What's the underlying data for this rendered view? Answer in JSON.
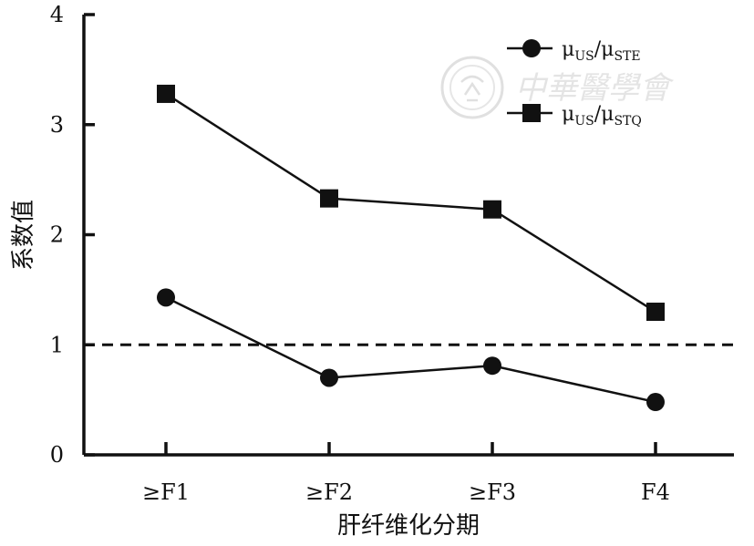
{
  "chart_data": {
    "type": "line",
    "categories": [
      "≥F1",
      "≥F2",
      "≥F3",
      "F4"
    ],
    "ylim": [
      0,
      4
    ],
    "yticks": [
      0,
      1,
      2,
      3,
      4
    ],
    "xlabel": "肝纤维化分期",
    "ylabel": "系数值",
    "reference_line": {
      "y": 1,
      "style": "dashed"
    },
    "legend_position": "top-right",
    "series": [
      {
        "key": "ste",
        "name": "μUS/μSTE",
        "legend": {
          "num_base": "μ",
          "num_sub": "US",
          "den_base": "μ",
          "den_sub": "STE"
        },
        "marker": "circle",
        "values": [
          1.43,
          0.7,
          0.81,
          0.48
        ]
      },
      {
        "key": "stq",
        "name": "μUS/μSTQ",
        "legend": {
          "num_base": "μ",
          "num_sub": "US",
          "den_base": "μ",
          "den_sub": "STQ"
        },
        "marker": "square",
        "values": [
          3.28,
          2.33,
          2.23,
          1.3
        ]
      }
    ],
    "watermark": "中華醫學會"
  }
}
